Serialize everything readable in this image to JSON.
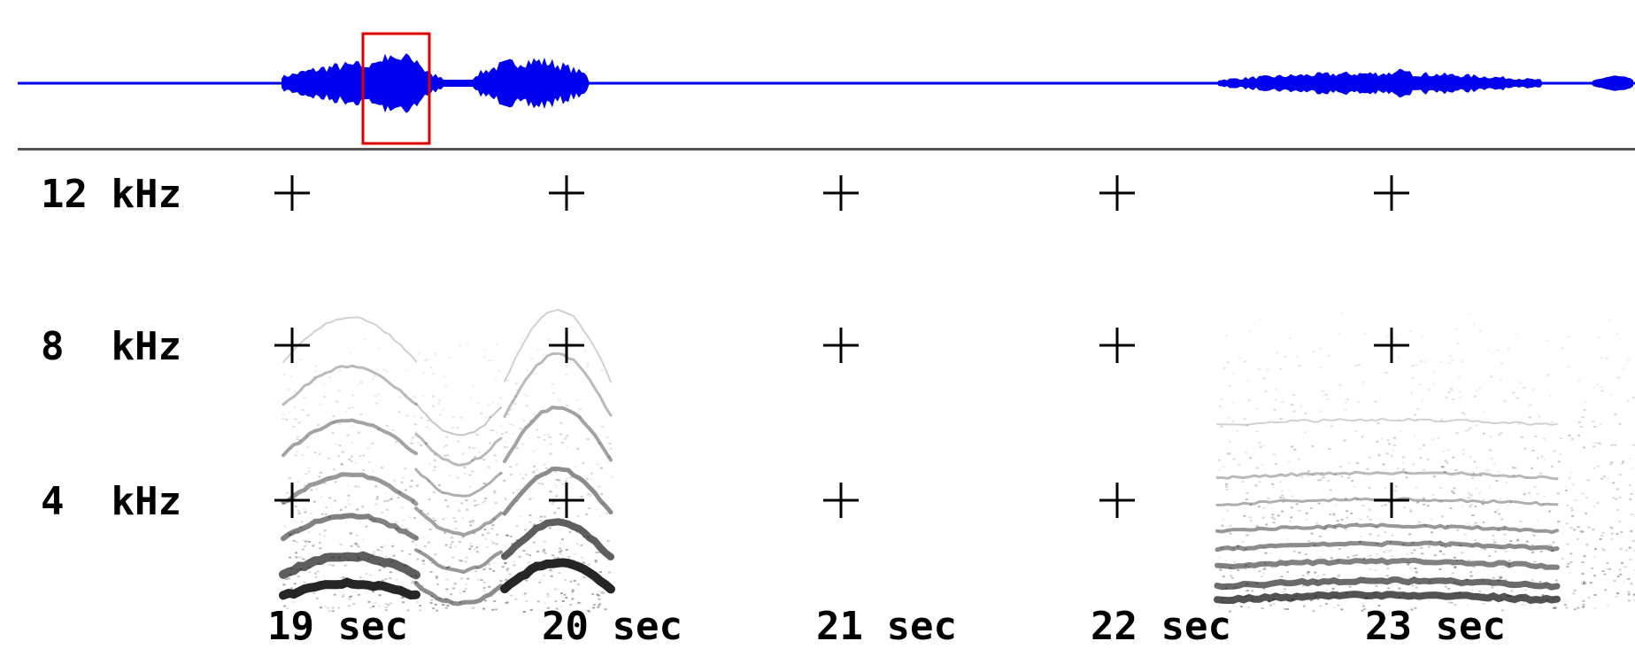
{
  "colors": {
    "waveform": "#0000ee",
    "selection": "#e00000",
    "grid": "#000000",
    "spectrogram": "#1a1a1a"
  },
  "freq_labels": [
    "12 kHz",
    "8  kHz",
    "4  kHz"
  ],
  "time_labels": [
    "19 sec",
    "20 sec",
    "21 sec",
    "22 sec",
    "23 sec"
  ]
}
